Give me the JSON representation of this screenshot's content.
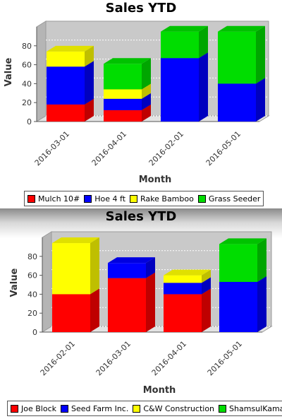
{
  "chart_data": [
    {
      "type": "bar",
      "stacked": true,
      "title": "Sales YTD",
      "xlabel": "Month",
      "ylabel": "Value",
      "ylim": [
        0,
        100
      ],
      "yticks": [
        0,
        20,
        40,
        60,
        80
      ],
      "grid": true,
      "legend_position": "bottom",
      "categories": [
        "2016-03-01",
        "2016-04-01",
        "2016-02-01",
        "2016-05-01"
      ],
      "series": [
        {
          "name": "Mulch 10#",
          "color": "#ff0000",
          "values": [
            18,
            12,
            0,
            0
          ]
        },
        {
          "name": "Hoe 4 ft",
          "color": "#0000ff",
          "values": [
            40,
            12,
            67,
            40
          ]
        },
        {
          "name": "Rake Bamboo",
          "color": "#ffff00",
          "values": [
            16,
            10,
            0,
            0
          ]
        },
        {
          "name": "Grass Seeder",
          "color": "#00dd00",
          "values": [
            0,
            27,
            28,
            55
          ]
        }
      ]
    },
    {
      "type": "bar",
      "stacked": true,
      "title": "Sales YTD",
      "xlabel": "Month",
      "ylabel": "Value",
      "ylim": [
        0,
        100
      ],
      "yticks": [
        0,
        20,
        40,
        60,
        80
      ],
      "grid": true,
      "legend_position": "bottom",
      "categories": [
        "2016-02-01",
        "2016-03-01",
        "2016-04-01",
        "2016-05-01"
      ],
      "series": [
        {
          "name": "Joe Block",
          "color": "#ff0000",
          "values": [
            40,
            57,
            40,
            0
          ]
        },
        {
          "name": "Seed Farm Inc.",
          "color": "#0000ff",
          "values": [
            0,
            16,
            12,
            53
          ]
        },
        {
          "name": "C&W Construction",
          "color": "#ffff00",
          "values": [
            54,
            0,
            8,
            0
          ]
        },
        {
          "name": "ShamsulKamal",
          "color": "#00dd00",
          "values": [
            0,
            0,
            0,
            40
          ]
        }
      ]
    }
  ]
}
